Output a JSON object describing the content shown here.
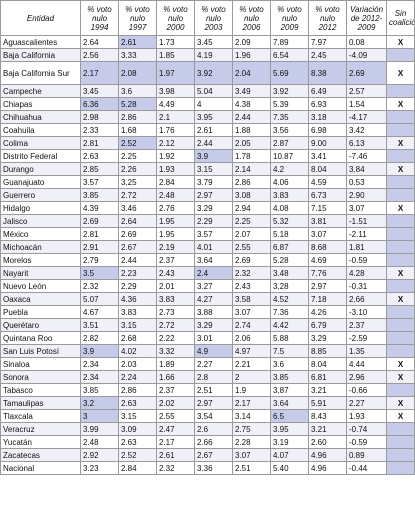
{
  "headers": [
    "Entidad",
    "% voto nulo 1994",
    "% voto nulo 1997",
    "% voto nulo 2000",
    "% voto nulo 2003",
    "% voto nulo 2006",
    "% voto nulo 2009",
    "% voto nulo 2012",
    "Variación de 2012-2009",
    "Sin coalición"
  ],
  "highlight_color": "#c5cbe9",
  "rows": [
    {
      "entidad": "Aguascalientes",
      "v": [
        "2.64",
        "2.61",
        "1.73",
        "3.45",
        "2.09",
        "7.89",
        "7.97",
        "0.08"
      ],
      "sc": "X",
      "hl": [
        2
      ]
    },
    {
      "entidad": "Baja California",
      "v": [
        "2.56",
        "3.33",
        "1.85",
        "4.19",
        "1.96",
        "6.54",
        "2.45",
        "-4.09"
      ],
      "sc": "",
      "hl": [
        9
      ]
    },
    {
      "entidad": "Baja California Sur",
      "v": [
        "2.17",
        "2.08",
        "1.97",
        "3.92",
        "2.04",
        "5.69",
        "8.38",
        "2.69"
      ],
      "sc": "X",
      "hl": [
        1,
        2,
        3,
        4,
        5,
        6,
        7,
        8
      ]
    },
    {
      "entidad": "Campeche",
      "v": [
        "3.45",
        "3.6",
        "3.98",
        "5.04",
        "3.49",
        "3.92",
        "6.49",
        "2.57"
      ],
      "sc": "",
      "hl": [
        9
      ]
    },
    {
      "entidad": "Chiapas",
      "v": [
        "6.36",
        "5.28",
        "4.49",
        "4",
        "4.38",
        "5.39",
        "6.93",
        "1.54"
      ],
      "sc": "X",
      "hl": [
        1,
        2
      ]
    },
    {
      "entidad": "Chihuahua",
      "v": [
        "2.98",
        "2.86",
        "2.1",
        "3.95",
        "2.44",
        "7.35",
        "3.18",
        "-4.17"
      ],
      "sc": "",
      "hl": [
        9
      ]
    },
    {
      "entidad": "Coahuila",
      "v": [
        "2.33",
        "1.68",
        "1.76",
        "2.61",
        "1.88",
        "3.56",
        "6.98",
        "3.42"
      ],
      "sc": "",
      "hl": [
        9
      ]
    },
    {
      "entidad": "Colima",
      "v": [
        "2.81",
        "2.52",
        "2.12",
        "2.44",
        "2.05",
        "2.87",
        "9.00",
        "6.13"
      ],
      "sc": "X",
      "hl": [
        2
      ]
    },
    {
      "entidad": "Distrito Federal",
      "v": [
        "2.63",
        "2.25",
        "1.92",
        "3.9",
        "1.78",
        "10.87",
        "3.41",
        "-7.46"
      ],
      "sc": "",
      "hl": [
        4,
        9
      ]
    },
    {
      "entidad": "Durango",
      "v": [
        "2.85",
        "2.26",
        "1.93",
        "3.15",
        "2.14",
        "4.2",
        "8.04",
        "3.84"
      ],
      "sc": "X",
      "hl": []
    },
    {
      "entidad": "Guanajuato",
      "v": [
        "3.57",
        "3.25",
        "2.84",
        "3.79",
        "2.86",
        "4.06",
        "4.59",
        "0.53"
      ],
      "sc": "",
      "hl": [
        9
      ]
    },
    {
      "entidad": "Guerrero",
      "v": [
        "3.85",
        "2.72",
        "2.48",
        "2.97",
        "3.08",
        "3.83",
        "6.73",
        "2.90"
      ],
      "sc": "",
      "hl": [
        9
      ]
    },
    {
      "entidad": "Hidalgo",
      "v": [
        "4.39",
        "3.46",
        "2.76",
        "3.29",
        "2.94",
        "4.08",
        "7.15",
        "3.07"
      ],
      "sc": "X",
      "hl": []
    },
    {
      "entidad": "Jalisco",
      "v": [
        "2.69",
        "2.64",
        "1.95",
        "2.29",
        "2.25",
        "5.32",
        "3.81",
        "-1.51"
      ],
      "sc": "",
      "hl": [
        9
      ]
    },
    {
      "entidad": "México",
      "v": [
        "2.81",
        "2.69",
        "1.95",
        "3.57",
        "2.07",
        "5.18",
        "3.07",
        "-2.11"
      ],
      "sc": "",
      "hl": [
        9
      ]
    },
    {
      "entidad": "Michoacán",
      "v": [
        "2.91",
        "2.67",
        "2.19",
        "4.01",
        "2.55",
        "6.87",
        "8.68",
        "1.81"
      ],
      "sc": "",
      "hl": [
        9
      ]
    },
    {
      "entidad": "Morelos",
      "v": [
        "2.79",
        "2.44",
        "2.37",
        "3.64",
        "2.69",
        "5.28",
        "4.69",
        "-0.59"
      ],
      "sc": "",
      "hl": [
        9
      ]
    },
    {
      "entidad": "Nayarit",
      "v": [
        "3.5",
        "2.23",
        "2.43",
        "2.4",
        "2.32",
        "3.48",
        "7.76",
        "4.28"
      ],
      "sc": "X",
      "hl": [
        1,
        4
      ]
    },
    {
      "entidad": "Nuevo León",
      "v": [
        "2.32",
        "2.29",
        "2.01",
        "3.27",
        "2.43",
        "3.28",
        "2.97",
        "-0.31"
      ],
      "sc": "",
      "hl": [
        9
      ]
    },
    {
      "entidad": "Oaxaca",
      "v": [
        "5.07",
        "4.36",
        "3.83",
        "4.27",
        "3.58",
        "4.52",
        "7.18",
        "2.66"
      ],
      "sc": "X",
      "hl": []
    },
    {
      "entidad": "Puebla",
      "v": [
        "4.67",
        "3.83",
        "2.73",
        "3.88",
        "3.07",
        "7.36",
        "4.26",
        "-3.10"
      ],
      "sc": "",
      "hl": [
        9
      ]
    },
    {
      "entidad": "Querétaro",
      "v": [
        "3.51",
        "3.15",
        "2.72",
        "3.29",
        "2.74",
        "4.42",
        "6.79",
        "2.37"
      ],
      "sc": "",
      "hl": [
        9
      ]
    },
    {
      "entidad": "Quintana Roo",
      "v": [
        "2.82",
        "2.68",
        "2.22",
        "3.01",
        "2.06",
        "5.88",
        "3.29",
        "-2.59"
      ],
      "sc": "",
      "hl": [
        9
      ]
    },
    {
      "entidad": "San Luis Potosí",
      "v": [
        "3.9",
        "4.02",
        "3.32",
        "4.9",
        "4.97",
        "7.5",
        "8.85",
        "1.35"
      ],
      "sc": "",
      "hl": [
        1,
        4,
        9
      ]
    },
    {
      "entidad": "Sinaloa",
      "v": [
        "2.34",
        "2.03",
        "1.89",
        "2.27",
        "2.21",
        "3.6",
        "8.04",
        "4.44"
      ],
      "sc": "X",
      "hl": []
    },
    {
      "entidad": "Sonora",
      "v": [
        "2.34",
        "2.24",
        "1.66",
        "2.8",
        "2",
        "3.85",
        "6.81",
        "2.96"
      ],
      "sc": "X",
      "hl": []
    },
    {
      "entidad": "Tabasco",
      "v": [
        "3.85",
        "2.86",
        "2.37",
        "2.51",
        "1.9",
        "3.87",
        "3.21",
        "-0.66"
      ],
      "sc": "",
      "hl": [
        9
      ]
    },
    {
      "entidad": "Tamaulipas",
      "v": [
        "3.2",
        "2.63",
        "2.02",
        "2.97",
        "2.17",
        "3.64",
        "5.91",
        "2.27"
      ],
      "sc": "X",
      "hl": [
        1
      ]
    },
    {
      "entidad": "Tlaxcala",
      "v": [
        "3",
        "3.15",
        "2.55",
        "3.54",
        "3.14",
        "6.5",
        "8.43",
        "1.93"
      ],
      "sc": "X",
      "hl": [
        1,
        6
      ]
    },
    {
      "entidad": "Veracruz",
      "v": [
        "3.99",
        "3.09",
        "2.47",
        "2.6",
        "2.75",
        "3.95",
        "3.21",
        "-0.74"
      ],
      "sc": "",
      "hl": [
        9
      ]
    },
    {
      "entidad": "Yucatán",
      "v": [
        "2.48",
        "2.63",
        "2.17",
        "2.66",
        "2.28",
        "3.19",
        "2.60",
        "-0.59"
      ],
      "sc": "",
      "hl": [
        9
      ]
    },
    {
      "entidad": "Zacatecas",
      "v": [
        "2.92",
        "2.52",
        "2.61",
        "2.67",
        "3.07",
        "4.07",
        "4.96",
        "0.89"
      ],
      "sc": "",
      "hl": [
        9
      ]
    },
    {
      "entidad": "Nacional",
      "v": [
        "3.23",
        "2.84",
        "2.32",
        "3.36",
        "2.51",
        "5.40",
        "4.96",
        "-0.44"
      ],
      "sc": "",
      "hl": [
        9
      ]
    }
  ]
}
